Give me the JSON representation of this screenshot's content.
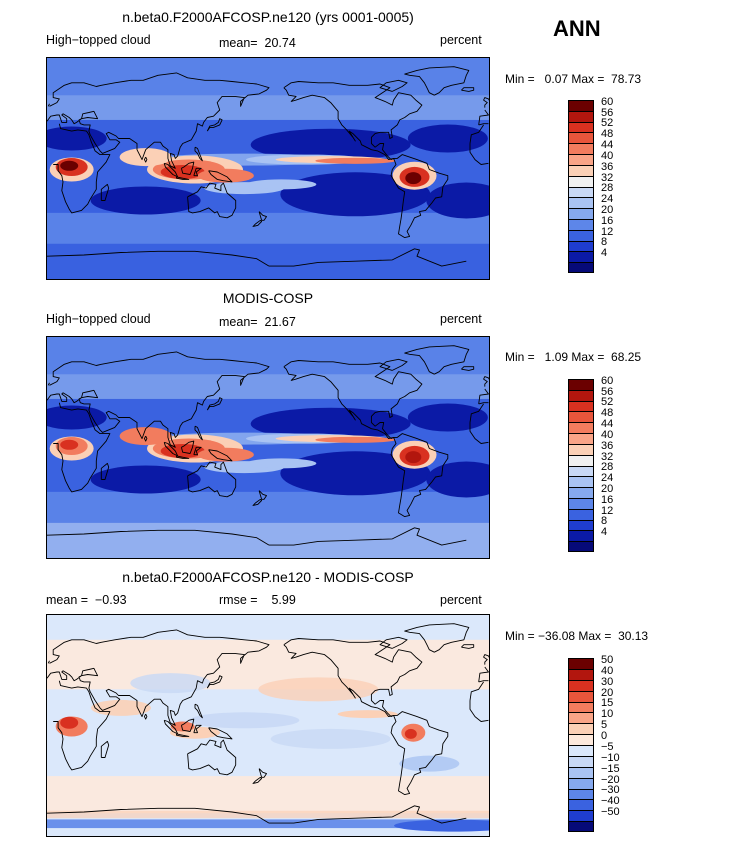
{
  "season": "ANN",
  "panels": [
    {
      "title": "n.beta0.F2000AFCOSP.ne120 (yrs 0001-0005)",
      "left_label": "High−topped cloud",
      "mid_label": "mean=  20.74",
      "right_label": "percent",
      "minmax": "Min =   0.07 Max =  78.73",
      "colorbar_labels": [
        "60",
        "56",
        "52",
        "48",
        "44",
        "40",
        "36",
        "32",
        "28",
        "24",
        "20",
        "16",
        "12",
        "8",
        "4"
      ],
      "colors": [
        "#6b0000",
        "#b2160e",
        "#d93120",
        "#e8553b",
        "#f27c5e",
        "#f9a487",
        "#fbd0b6",
        "#f0f0f0",
        "#c8d8f5",
        "#a9c3f3",
        "#86a9ee",
        "#5d86e9",
        "#3a62e0",
        "#1f3dd0",
        "#0b1aa6",
        "#060a78"
      ]
    },
    {
      "title": "MODIS-COSP",
      "left_label": "High−topped cloud",
      "mid_label": "mean=  21.67",
      "right_label": "percent",
      "minmax": "Min =   1.09 Max =  68.25",
      "colorbar_labels": [
        "60",
        "56",
        "52",
        "48",
        "44",
        "40",
        "36",
        "32",
        "28",
        "24",
        "20",
        "16",
        "12",
        "8",
        "4"
      ],
      "colors": [
        "#6b0000",
        "#b2160e",
        "#d93120",
        "#e8553b",
        "#f27c5e",
        "#f9a487",
        "#fbd0b6",
        "#f0f0f0",
        "#c8d8f5",
        "#a9c3f3",
        "#86a9ee",
        "#5d86e9",
        "#3a62e0",
        "#1f3dd0",
        "#0b1aa6",
        "#060a78"
      ]
    },
    {
      "title": "n.beta0.F2000AFCOSP.ne120 - MODIS-COSP",
      "left_label": "mean =  −0.93",
      "mid_label": "rmse =    5.99",
      "right_label": "percent",
      "minmax": "Min = −36.08 Max =  30.13",
      "colorbar_labels": [
        "50",
        "40",
        "30",
        "20",
        "15",
        "10",
        "5",
        "0",
        "−5",
        "−10",
        "−15",
        "−20",
        "−30",
        "−40",
        "−50"
      ],
      "colors": [
        "#6b0000",
        "#b2160e",
        "#d93120",
        "#e8553b",
        "#f27c5e",
        "#f9a487",
        "#fbd0b6",
        "#fde9dc",
        "#dbe8fb",
        "#c8d8f5",
        "#a9c3f3",
        "#86a9ee",
        "#5d86e9",
        "#3a62e0",
        "#1f3dd0",
        "#060a78"
      ]
    }
  ]
}
